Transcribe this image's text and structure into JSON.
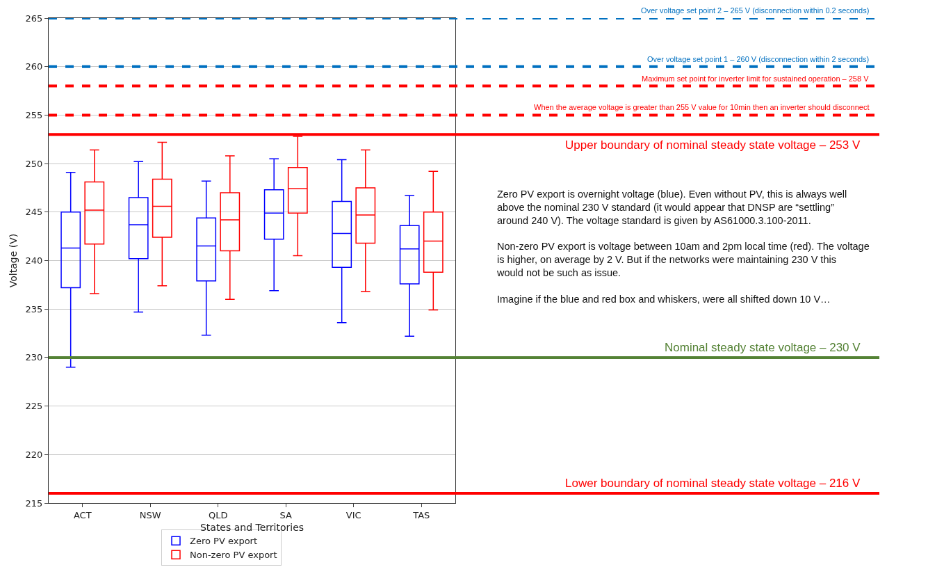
{
  "chart_data": {
    "type": "box",
    "xlabel": "States and Territories",
    "ylabel": "Voltage (V)",
    "categories": [
      "ACT",
      "NSW",
      "QLD",
      "SA",
      "VIC",
      "TAS"
    ],
    "series": [
      {
        "name": "Zero PV export",
        "color": "#0000ff",
        "boxes": [
          {
            "low": 229.0,
            "q1": 237.2,
            "median": 241.3,
            "q3": 245.0,
            "high": 249.1
          },
          {
            "low": 234.7,
            "q1": 240.2,
            "median": 243.7,
            "q3": 246.5,
            "high": 250.2
          },
          {
            "low": 232.3,
            "q1": 237.9,
            "median": 241.5,
            "q3": 244.4,
            "high": 248.2
          },
          {
            "low": 236.9,
            "q1": 242.2,
            "median": 244.9,
            "q3": 247.3,
            "high": 250.5
          },
          {
            "low": 233.6,
            "q1": 239.3,
            "median": 242.8,
            "q3": 246.1,
            "high": 250.4
          },
          {
            "low": 232.2,
            "q1": 237.6,
            "median": 241.2,
            "q3": 243.6,
            "high": 246.7
          }
        ]
      },
      {
        "name": "Non-zero PV export",
        "color": "#ff0000",
        "boxes": [
          {
            "low": 236.6,
            "q1": 241.7,
            "median": 245.2,
            "q3": 248.1,
            "high": 251.4
          },
          {
            "low": 237.4,
            "q1": 242.4,
            "median": 245.6,
            "q3": 248.4,
            "high": 252.2
          },
          {
            "low": 236.0,
            "q1": 241.0,
            "median": 244.2,
            "q3": 247.0,
            "high": 250.8
          },
          {
            "low": 240.5,
            "q1": 244.9,
            "median": 247.4,
            "q3": 249.6,
            "high": 252.8
          },
          {
            "low": 236.8,
            "q1": 241.8,
            "median": 244.7,
            "q3": 247.5,
            "high": 251.4
          },
          {
            "low": 234.9,
            "q1": 238.8,
            "median": 242.0,
            "q3": 245.0,
            "high": 249.2
          }
        ]
      }
    ],
    "ylim": [
      215,
      265
    ],
    "yticks": [
      215,
      220,
      225,
      230,
      235,
      240,
      245,
      250,
      255,
      260,
      265
    ],
    "grid": "y",
    "legend": "bottom",
    "ref_lines": [
      {
        "axis": "y",
        "value": 265,
        "label": "Over voltage set point 2 – 265 V (disconnection within 0.2 seconds)",
        "color": "#0070c0",
        "line_style": "dashed"
      },
      {
        "axis": "y",
        "value": 260,
        "label": "Over voltage set point 1 – 260 V (disconnection within 2 seconds)",
        "color": "#0070c0",
        "line_style": "dashed"
      },
      {
        "axis": "y",
        "value": 258,
        "label": "Maximum set point for inverter limit for sustained operation – 258 V",
        "color": "#ff0000",
        "line_style": "dashed"
      },
      {
        "axis": "y",
        "value": 255,
        "label": "When the average voltage is greater than 255 V value for 10min then an inverter should disconnect",
        "color": "#ff0000",
        "line_style": "dashed"
      },
      {
        "axis": "y",
        "value": 253,
        "label": "Upper boundary of nominal steady state voltage – 253 V",
        "color": "#ff0000",
        "line_style": "solid"
      },
      {
        "axis": "y",
        "value": 230,
        "label": "Nominal steady state voltage – 230 V",
        "color": "#548235",
        "line_style": "solid"
      },
      {
        "axis": "y",
        "value": 216,
        "label": "Lower boundary of nominal steady state voltage – 216 V",
        "color": "#ff0000",
        "line_style": "solid"
      }
    ],
    "annotations": [
      "Zero PV export is overnight voltage (blue). Even without PV, this is always well above the nominal 230 V standard (it would appear that DNSP are “settling” around 240 V). The voltage standard is given by AS61000.3.100-2011.",
      "Non-zero PV export is voltage between 10am and 2pm local time (red). The voltage is higher, on average by 2 V. But if the networks were maintaining 230 V this would not be such as issue.",
      "Imagine if the blue and red box and whiskers, were all shifted down 10 V…"
    ]
  }
}
